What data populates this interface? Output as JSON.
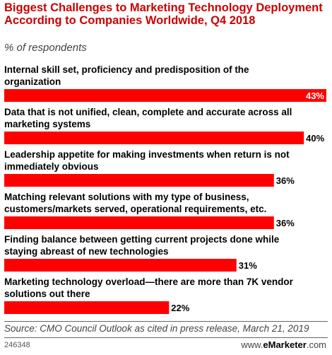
{
  "title": "Biggest Challenges to Marketing Technology Deployment According to Companies Worldwide, Q4 2018",
  "subtitle": "% of respondents",
  "source": "Source: CMO Council Outlook as cited in press release, March 21, 2019",
  "chart_code": "246348",
  "brand": {
    "www": "www.",
    "name": "eMarketer",
    "tld": ".com"
  },
  "colors": {
    "bar": "#ff0000",
    "title": "#cc0000"
  },
  "chart_data": {
    "type": "bar",
    "orientation": "horizontal",
    "xlim": [
      0,
      43
    ],
    "categories": [
      [
        "Internal skill set, proficiency and predisposition of the",
        "organization"
      ],
      [
        "Data that is not unified, clean, complete and accurate across all",
        "marketing systems"
      ],
      [
        "Leadership appetite for making investments when return is not",
        "immediately obvious"
      ],
      [
        "Matching relevant solutions with my type of business,",
        "customers/markets served, operational requirements, etc."
      ],
      [
        "Finding balance between getting current projects done while",
        "staying abreast of new technologies"
      ],
      [
        "Marketing technology overload—there are more than 7K vendor",
        "solutions out there"
      ]
    ],
    "values": [
      43,
      40,
      36,
      36,
      31,
      22
    ],
    "value_labels": [
      "43%",
      "40%",
      "36%",
      "36%",
      "31%",
      "22%"
    ]
  }
}
